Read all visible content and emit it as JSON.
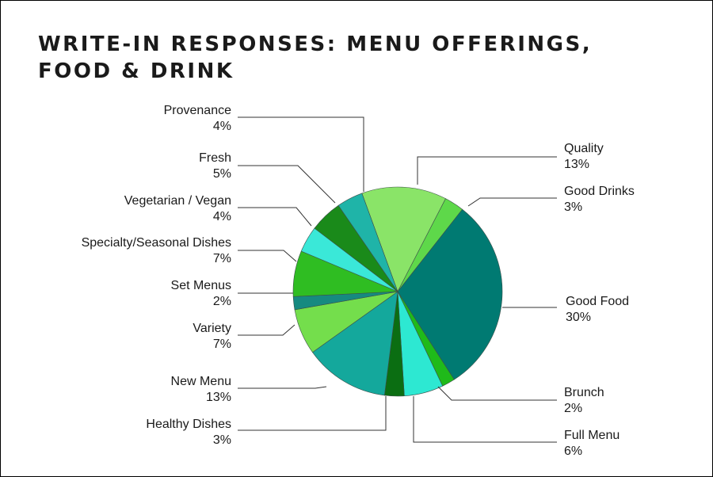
{
  "title_line1": "WRITE-IN RESPONSES: MENU OFFERINGS,",
  "title_line2": "FOOD & DRINK",
  "chart_data": {
    "type": "pie",
    "title": "WRITE-IN RESPONSES: MENU OFFERINGS, FOOD & DRINK",
    "slices": [
      {
        "label": "Quality",
        "value": 13,
        "display": "13%",
        "color": "#8ae468"
      },
      {
        "label": "Good Drinks",
        "value": 3,
        "display": "3%",
        "color": "#5ed84a"
      },
      {
        "label": "Good Food",
        "value": 30,
        "display": "30%",
        "color": "#007a72"
      },
      {
        "label": "Brunch",
        "value": 2,
        "display": "2%",
        "color": "#1fba1a"
      },
      {
        "label": "Full Menu",
        "value": 6,
        "display": "6%",
        "color": "#2de8d2"
      },
      {
        "label": "Healthy Dishes",
        "value": 3,
        "display": "3%",
        "color": "#0b6e12"
      },
      {
        "label": "New Menu",
        "value": 13,
        "display": "13%",
        "color": "#14a89c"
      },
      {
        "label": "Variety",
        "value": 7,
        "display": "7%",
        "color": "#74de4c"
      },
      {
        "label": "Set Menus",
        "value": 2,
        "display": "2%",
        "color": "#168a80"
      },
      {
        "label": "Specialty/Seasonal Dishes",
        "value": 7,
        "display": "7%",
        "color": "#2fbd22"
      },
      {
        "label": "Vegetarian / Vegan",
        "value": 4,
        "display": "4%",
        "color": "#3ae8d8"
      },
      {
        "label": "Fresh",
        "value": 5,
        "display": "5%",
        "color": "#1a8a1a"
      },
      {
        "label": "Provenance",
        "value": 4,
        "display": "4%",
        "color": "#1fb4a8"
      }
    ]
  }
}
